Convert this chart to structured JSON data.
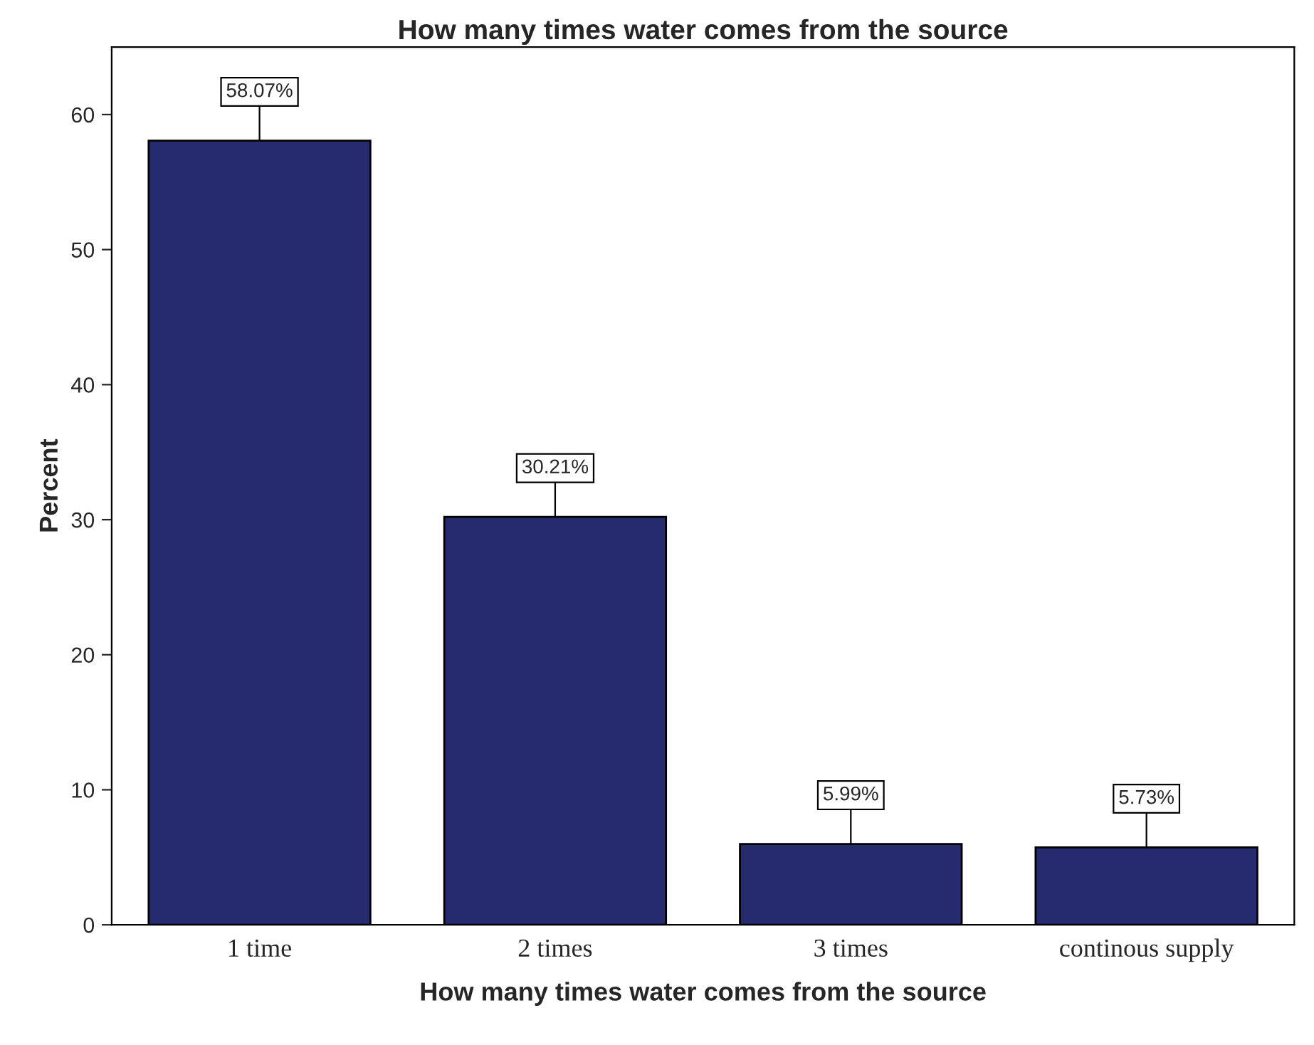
{
  "chart_data": {
    "type": "bar",
    "title": "How many times water comes from the source",
    "xlabel": "How many times water comes from the source",
    "ylabel": "Percent",
    "categories": [
      "1 time",
      "2 times",
      "3 times",
      "continous supply"
    ],
    "values": [
      58.07,
      30.21,
      5.99,
      5.73
    ],
    "value_labels": [
      "58.07%",
      "30.21%",
      "5.99%",
      "5.73%"
    ],
    "color": "#262a6e",
    "ylim": [
      0,
      65
    ],
    "yticks": [
      0,
      10,
      20,
      30,
      40,
      50,
      60
    ],
    "grid": false
  }
}
